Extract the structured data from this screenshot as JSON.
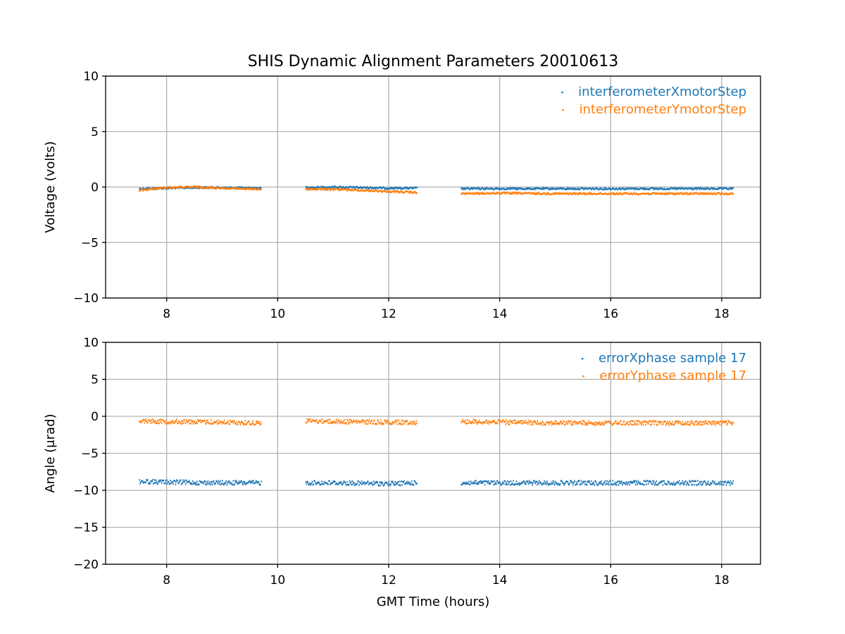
{
  "figure": {
    "title": "SHIS Dynamic Alignment Parameters 20010613"
  },
  "colors": {
    "blue": "#1f77b4",
    "orange": "#ff7f0e",
    "grid": "#b0b0b0"
  },
  "chart_data": [
    {
      "type": "scatter",
      "title": "SHIS Dynamic Alignment Parameters 20010613",
      "xlabel": "",
      "ylabel": "Voltage (volts)",
      "xlim": [
        6.9,
        18.7
      ],
      "ylim": [
        -10,
        10
      ],
      "xticks": [
        8,
        10,
        12,
        14,
        16,
        18
      ],
      "yticks": [
        10,
        5,
        0,
        -5,
        -10
      ],
      "ytick_labels": [
        "10",
        "5",
        "0",
        "−5",
        "−10"
      ],
      "grid": true,
      "legend": "top-right",
      "segments": [
        [
          7.5,
          9.7
        ],
        [
          10.5,
          12.5
        ],
        [
          13.3,
          18.2
        ]
      ],
      "series": [
        {
          "name": "interferometerXmotorStep",
          "color": "#1f77b4",
          "x": [
            7.5,
            8.0,
            8.5,
            9.0,
            9.7,
            10.5,
            11.0,
            11.5,
            12.0,
            12.5,
            13.3,
            14.0,
            15.0,
            16.0,
            17.0,
            18.2
          ],
          "y": [
            -0.15,
            -0.1,
            -0.05,
            -0.05,
            -0.1,
            -0.05,
            0.0,
            -0.05,
            -0.1,
            -0.1,
            -0.15,
            -0.15,
            -0.15,
            -0.15,
            -0.15,
            -0.15
          ],
          "spread": 0.08
        },
        {
          "name": "interferometerYmotorStep",
          "color": "#ff7f0e",
          "x": [
            7.5,
            8.0,
            8.5,
            9.0,
            9.7,
            10.5,
            11.0,
            11.5,
            12.0,
            12.5,
            13.3,
            14.0,
            15.0,
            16.0,
            17.0,
            18.2
          ],
          "y": [
            -0.3,
            -0.05,
            0.0,
            -0.1,
            -0.2,
            -0.2,
            -0.2,
            -0.3,
            -0.4,
            -0.5,
            -0.6,
            -0.55,
            -0.6,
            -0.6,
            -0.6,
            -0.6
          ],
          "spread": 0.08
        }
      ]
    },
    {
      "type": "scatter",
      "title": "",
      "xlabel": "GMT Time (hours)",
      "ylabel": "Angle (μrad)",
      "xlim": [
        6.9,
        18.7
      ],
      "ylim": [
        -20,
        10
      ],
      "xticks": [
        8,
        10,
        12,
        14,
        16,
        18
      ],
      "yticks": [
        10,
        5,
        0,
        -5,
        -10,
        -15,
        -20
      ],
      "ytick_labels": [
        "10",
        "5",
        "0",
        "−5",
        "−10",
        "−15",
        "−20"
      ],
      "grid": true,
      "legend": "top-right",
      "segments": [
        [
          7.5,
          9.7
        ],
        [
          10.5,
          12.5
        ],
        [
          13.3,
          18.2
        ]
      ],
      "series": [
        {
          "name": "errorXphase sample 17",
          "color": "#1f77b4",
          "x": [
            7.5,
            8.0,
            9.0,
            9.7,
            10.5,
            11.0,
            12.0,
            12.5,
            13.3,
            14.0,
            15.0,
            16.0,
            17.0,
            18.2
          ],
          "y": [
            -8.8,
            -8.9,
            -9.0,
            -9.0,
            -9.0,
            -9.0,
            -9.1,
            -9.0,
            -9.0,
            -9.0,
            -9.0,
            -9.0,
            -9.0,
            -9.0
          ],
          "spread": 0.3
        },
        {
          "name": "errorYphase sample 17",
          "color": "#ff7f0e",
          "x": [
            7.5,
            8.0,
            9.0,
            9.7,
            10.5,
            11.0,
            12.0,
            12.5,
            13.3,
            14.0,
            15.0,
            16.0,
            17.0,
            18.2
          ],
          "y": [
            -0.6,
            -0.7,
            -0.8,
            -0.9,
            -0.6,
            -0.7,
            -0.8,
            -0.8,
            -0.7,
            -0.8,
            -0.9,
            -0.9,
            -0.9,
            -0.9
          ],
          "spread": 0.3
        }
      ]
    }
  ]
}
